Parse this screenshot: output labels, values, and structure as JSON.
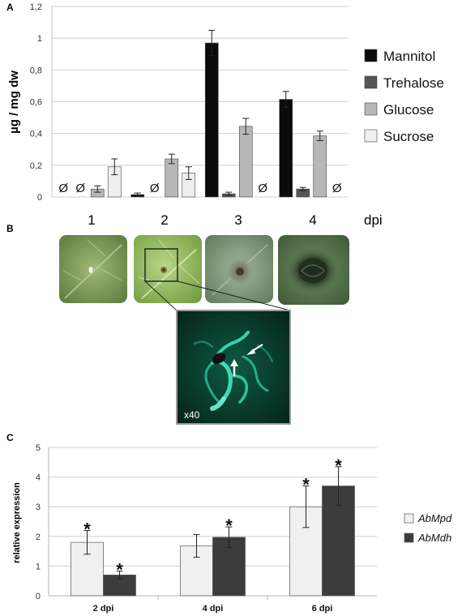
{
  "panels": {
    "a": {
      "letter": "A"
    },
    "b": {
      "letter": "B",
      "dpi_unit": "dpi",
      "days": [
        "1",
        "2",
        "3",
        "4"
      ],
      "inset_mag": "x40"
    },
    "c": {
      "letter": "C"
    }
  },
  "colors": {
    "mannitol": "#0b0b0b",
    "trehalose": "#555555",
    "glucose": "#b7b7b7",
    "sucrose": "#efefef",
    "abmpd": "#f0f0f0",
    "abmdh": "#3c3c3c",
    "inset_glow": "#2fe0b4"
  },
  "chart_data": [
    {
      "type": "bar",
      "title": "",
      "xlabel": "",
      "ylabel": "µg / mg dw",
      "ylim": [
        0,
        1.2
      ],
      "yticks": [
        "0",
        "0,2",
        "0,4",
        "0,6",
        "0,8",
        "1",
        "1,2"
      ],
      "categories": [
        "1",
        "2",
        "3",
        "4"
      ],
      "absent_marker": "Ø",
      "grid": true,
      "legend_position": "right",
      "series": [
        {
          "name": "Mannitol",
          "values": [
            null,
            0.015,
            0.97,
            0.615
          ],
          "errors": [
            null,
            0.01,
            0.08,
            0.05
          ]
        },
        {
          "name": "Trehalose",
          "values": [
            null,
            null,
            0.02,
            0.05
          ],
          "errors": [
            null,
            null,
            0.01,
            0.01
          ]
        },
        {
          "name": "Glucose",
          "values": [
            0.05,
            0.24,
            0.445,
            0.385
          ],
          "errors": [
            0.02,
            0.03,
            0.05,
            0.03
          ]
        },
        {
          "name": "Sucrose",
          "values": [
            0.19,
            0.15,
            null,
            null
          ],
          "errors": [
            0.05,
            0.04,
            null,
            null
          ]
        }
      ]
    },
    {
      "type": "bar",
      "title": "",
      "xlabel": "",
      "ylabel": "relative expression",
      "ylim": [
        0,
        5
      ],
      "yticks": [
        "0",
        "1",
        "2",
        "3",
        "4",
        "5"
      ],
      "categories": [
        "2 dpi",
        "4 dpi",
        "6 dpi"
      ],
      "grid": true,
      "legend_position": "right",
      "significance_marker": "*",
      "series": [
        {
          "name": "AbMpd",
          "values": [
            1.8,
            1.68,
            3.0
          ],
          "errors": [
            0.4,
            0.38,
            0.7
          ],
          "significant": [
            true,
            false,
            true
          ]
        },
        {
          "name": "AbMdh",
          "values": [
            0.7,
            1.97,
            3.7
          ],
          "errors": [
            0.13,
            0.35,
            0.65
          ],
          "significant": [
            true,
            true,
            true
          ]
        }
      ]
    }
  ]
}
